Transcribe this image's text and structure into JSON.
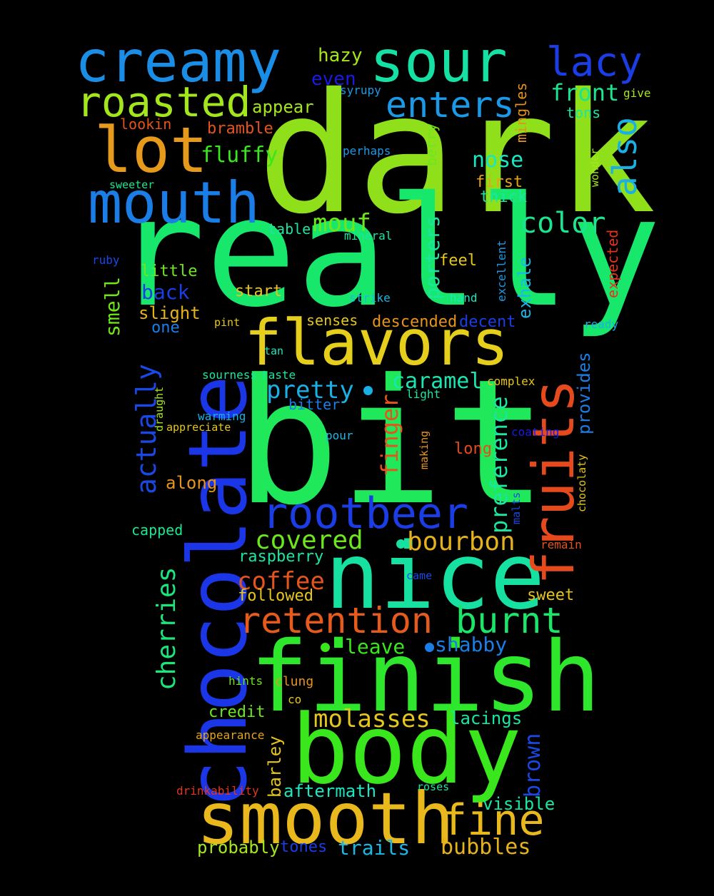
{
  "words": [
    {
      "text": "dark",
      "color": "#8fe01a"
    },
    {
      "text": "really",
      "color": "#17e86c"
    },
    {
      "text": "bit",
      "color": "#1fe85a"
    },
    {
      "text": "chocolate",
      "color": "#1a36e6"
    },
    {
      "text": "finish",
      "color": "#2ee62b"
    },
    {
      "text": "nice",
      "color": "#16e1a0"
    },
    {
      "text": "body",
      "color": "#3ae61c"
    },
    {
      "text": "smooth",
      "color": "#e8b81c"
    },
    {
      "text": "flavors",
      "color": "#e6cf1c"
    },
    {
      "text": "fruits",
      "color": "#e64a1c"
    },
    {
      "text": "creamy",
      "color": "#1a8ee6"
    },
    {
      "text": "sour",
      "color": "#16e1a5"
    },
    {
      "text": "mouth",
      "color": "#1a7ee6"
    },
    {
      "text": "lot",
      "color": "#e69a1c"
    },
    {
      "text": "roasted",
      "color": "#a4e61c"
    },
    {
      "text": "rootbeer",
      "color": "#1a3de6"
    },
    {
      "text": "lacy",
      "color": "#1a3de6"
    },
    {
      "text": "enters",
      "color": "#1a9ae6"
    },
    {
      "text": "also",
      "color": "#1ab0e6"
    },
    {
      "text": "retention",
      "color": "#e65a1c"
    },
    {
      "text": "burnt",
      "color": "#1ae66a"
    },
    {
      "text": "fine",
      "color": "#e8b81c"
    },
    {
      "text": "cherries",
      "color": "#1ae67a"
    },
    {
      "text": "actually",
      "color": "#1a48e6"
    },
    {
      "text": "covered",
      "color": "#6ee61c"
    },
    {
      "text": "bourbon",
      "color": "#e6b21c"
    },
    {
      "text": "molasses",
      "color": "#e6c61c"
    },
    {
      "text": "coffee",
      "color": "#e6541c"
    },
    {
      "text": "pretty",
      "color": "#1ab0e6"
    },
    {
      "text": "color",
      "color": "#1ae690"
    },
    {
      "text": "mouf",
      "color": "#6ee61c"
    },
    {
      "text": "fluffy",
      "color": "#3ae61c"
    },
    {
      "text": "front",
      "color": "#1ae690"
    },
    {
      "text": "nose",
      "color": "#1ae6c0"
    },
    {
      "text": "porters",
      "color": "#1ae6a0"
    },
    {
      "text": "preference",
      "color": "#1ae6a0"
    },
    {
      "text": "finger",
      "color": "#e6541c"
    },
    {
      "text": "caramel",
      "color": "#1ae6b0"
    },
    {
      "text": "brown",
      "color": "#1a48e6"
    },
    {
      "text": "barley",
      "color": "#e6c61c"
    },
    {
      "text": "bubbles",
      "color": "#e6b21c"
    },
    {
      "text": "trails",
      "color": "#1ab8e6"
    },
    {
      "text": "leave",
      "color": "#3ae61c"
    },
    {
      "text": "shabby",
      "color": "#1a7ee6"
    },
    {
      "text": "lacings",
      "color": "#1ae6a0"
    },
    {
      "text": "aftermath",
      "color": "#1ae6c0"
    },
    {
      "text": "visible",
      "color": "#1ae6a0"
    },
    {
      "text": "probably",
      "color": "#a4e61c"
    },
    {
      "text": "tones",
      "color": "#1a3de6"
    },
    {
      "text": "smell",
      "color": "#6ee61c"
    },
    {
      "text": "exhale",
      "color": "#1ab8e6"
    },
    {
      "text": "provides",
      "color": "#1a7ee6"
    },
    {
      "text": "back",
      "color": "#1a3de6"
    },
    {
      "text": "slight",
      "color": "#e6b21c"
    },
    {
      "text": "descended",
      "color": "#e6941c"
    },
    {
      "text": "decent",
      "color": "#1a3de6"
    },
    {
      "text": "senses",
      "color": "#e6c61c"
    },
    {
      "text": "appear",
      "color": "#a4e61c"
    },
    {
      "text": "hazy",
      "color": "#a4e61c"
    },
    {
      "text": "even",
      "color": "#1a1ae6"
    },
    {
      "text": "bramble",
      "color": "#e6541c"
    },
    {
      "text": "first",
      "color": "#e6a41c"
    },
    {
      "text": "thick",
      "color": "#1ae6a0"
    },
    {
      "text": "tons",
      "color": "#1ae6a0"
    },
    {
      "text": "berry",
      "color": "#6ee61c"
    },
    {
      "text": "mingles",
      "color": "#e6941c"
    },
    {
      "text": "feel",
      "color": "#e6c61c"
    },
    {
      "text": "little",
      "color": "#6ee61c"
    },
    {
      "text": "start",
      "color": "#e6c61c"
    },
    {
      "text": "table",
      "color": "#1ae6a0"
    },
    {
      "text": "one",
      "color": "#1a7ee6"
    },
    {
      "text": "along",
      "color": "#e6941c"
    },
    {
      "text": "capped",
      "color": "#1ae690"
    },
    {
      "text": "raspberry",
      "color": "#1ae6a0"
    },
    {
      "text": "followed",
      "color": "#e6c61c"
    },
    {
      "text": "sweet",
      "color": "#e6c61c"
    },
    {
      "text": "credit",
      "color": "#6ee61c"
    },
    {
      "text": "bitter",
      "color": "#1a7ee6"
    },
    {
      "text": "long",
      "color": "#e64a1c"
    },
    {
      "text": "lookin",
      "color": "#e6541c"
    },
    {
      "text": "syrupy",
      "color": "#1a9ae6"
    },
    {
      "text": "give",
      "color": "#a4e61c"
    },
    {
      "text": "perhaps",
      "color": "#1a9ae6"
    },
    {
      "text": "sweeter",
      "color": "#1ae690"
    },
    {
      "text": "wonder",
      "color": "#a4e61c"
    },
    {
      "text": "mineral",
      "color": "#1ae6a0"
    },
    {
      "text": "expected",
      "color": "#e6341c"
    },
    {
      "text": "ruby",
      "color": "#1a48e6"
    },
    {
      "text": "excellent",
      "color": "#1a9ae6"
    },
    {
      "text": "hand",
      "color": "#1ae6c0"
    },
    {
      "text": "strike",
      "color": "#1ab8e6"
    },
    {
      "text": "ready",
      "color": "#1ab0e6"
    },
    {
      "text": "pint",
      "color": "#e6c61c"
    },
    {
      "text": "tan",
      "color": "#1ae6c0"
    },
    {
      "text": "sourness",
      "color": "#1ae6a0"
    },
    {
      "text": "taste",
      "color": "#1ae6a0"
    },
    {
      "text": "light",
      "color": "#1ae6a0"
    },
    {
      "text": "complex",
      "color": "#e6c61c"
    },
    {
      "text": "draught",
      "color": "#a4e61c"
    },
    {
      "text": "warming",
      "color": "#1ab0e6"
    },
    {
      "text": "appreciate",
      "color": "#e6c61c"
    },
    {
      "text": "pour",
      "color": "#1ab8e6"
    },
    {
      "text": "coating",
      "color": "#1a1ae6"
    },
    {
      "text": "making",
      "color": "#e6941c"
    },
    {
      "text": "chocolaty",
      "color": "#e6c61c"
    },
    {
      "text": "malts",
      "color": "#1a48e6"
    },
    {
      "text": "remain",
      "color": "#e6541c"
    },
    {
      "text": "came",
      "color": "#1a48e6"
    },
    {
      "text": "hints",
      "color": "#6ee61c"
    },
    {
      "text": "clung",
      "color": "#e6941c"
    },
    {
      "text": "co",
      "color": "#e6c61c"
    },
    {
      "text": "appearance",
      "color": "#e6a41c"
    },
    {
      "text": "drinkability",
      "color": "#e6341c"
    },
    {
      "text": "roses",
      "color": "#1ae6a0"
    }
  ]
}
